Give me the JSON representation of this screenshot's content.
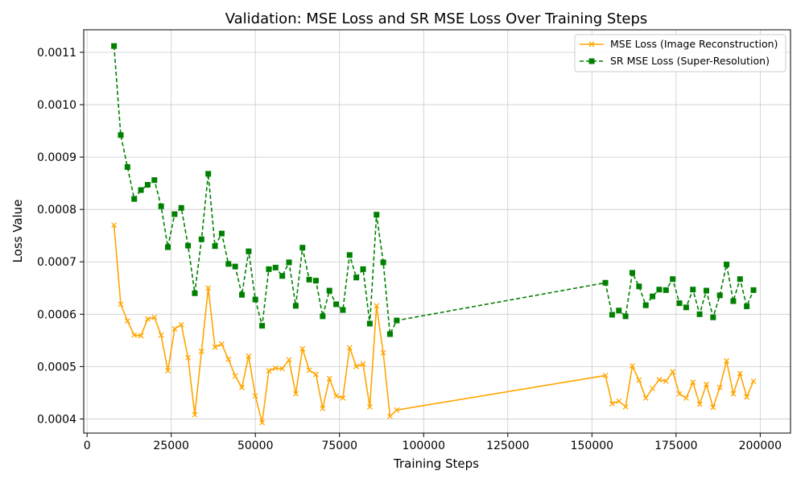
{
  "chart_data": {
    "type": "line",
    "title": "Validation: MSE Loss and SR MSE Loss Over Training Steps",
    "xlabel": "Training Steps",
    "ylabel": "Loss Value",
    "xlim": [
      -1000,
      209000
    ],
    "ylim": [
      0.000373,
      0.001143
    ],
    "xticks": [
      0,
      25000,
      50000,
      75000,
      100000,
      125000,
      150000,
      175000,
      200000
    ],
    "xtick_labels": [
      "0",
      "25000",
      "50000",
      "75000",
      "100000",
      "125000",
      "150000",
      "175000",
      "200000"
    ],
    "yticks": [
      0.0004,
      0.0005,
      0.0006,
      0.0007,
      0.0008,
      0.0009,
      0.001,
      0.0011
    ],
    "ytick_labels": [
      "0.0004",
      "0.0005",
      "0.0006",
      "0.0007",
      "0.0008",
      "0.0009",
      "0.0010",
      "0.0011"
    ],
    "grid": true,
    "legend_position": "top-right",
    "x": [
      8000,
      10000,
      12000,
      14000,
      16000,
      18000,
      20000,
      22000,
      24000,
      26000,
      28000,
      30000,
      32000,
      34000,
      36000,
      38000,
      40000,
      42000,
      44000,
      46000,
      48000,
      50000,
      52000,
      54000,
      56000,
      58000,
      60000,
      62000,
      64000,
      66000,
      68000,
      70000,
      72000,
      74000,
      76000,
      78000,
      80000,
      82000,
      84000,
      86000,
      88000,
      90000,
      92000,
      154000,
      156000,
      158000,
      160000,
      162000,
      164000,
      166000,
      168000,
      170000,
      172000,
      174000,
      176000,
      178000,
      180000,
      182000,
      184000,
      186000,
      188000,
      190000,
      192000,
      194000,
      196000,
      198000
    ],
    "series": [
      {
        "name": "MSE Loss (Image Reconstruction)",
        "color": "#FFA500",
        "linestyle": "solid",
        "marker": "x",
        "values": [
          0.00077,
          0.000619,
          0.000587,
          0.00056,
          0.000559,
          0.000591,
          0.000594,
          0.00056,
          0.000492,
          0.000572,
          0.00058,
          0.000517,
          0.000408,
          0.000529,
          0.00065,
          0.000537,
          0.000543,
          0.000514,
          0.000482,
          0.00046,
          0.00052,
          0.000444,
          0.000393,
          0.000492,
          0.000497,
          0.000496,
          0.000513,
          0.000448,
          0.000534,
          0.000493,
          0.000485,
          0.00042,
          0.000477,
          0.000444,
          0.00044,
          0.000536,
          0.0005,
          0.000505,
          0.000423,
          0.000616,
          0.000526,
          0.000405,
          0.000417,
          0.000483,
          0.000429,
          0.000434,
          0.000423,
          0.000501,
          0.000474,
          0.00044,
          0.000458,
          0.000475,
          0.000472,
          0.00049,
          0.000448,
          0.00044,
          0.00047,
          0.000428,
          0.000466,
          0.000422,
          0.00046,
          0.000511,
          0.000448,
          0.000487,
          0.000442,
          0.000472
        ]
      },
      {
        "name": "SR MSE Loss (Super-Resolution)",
        "color": "#008000",
        "linestyle": "dashed",
        "marker": "square",
        "values": [
          0.001112,
          0.000942,
          0.000881,
          0.00082,
          0.000837,
          0.000847,
          0.000856,
          0.000806,
          0.000728,
          0.000791,
          0.000803,
          0.000731,
          0.00064,
          0.000743,
          0.000868,
          0.00073,
          0.000754,
          0.000696,
          0.000691,
          0.000637,
          0.00072,
          0.000628,
          0.000578,
          0.000686,
          0.000689,
          0.000673,
          0.000699,
          0.000616,
          0.000727,
          0.000666,
          0.000664,
          0.000596,
          0.000645,
          0.000619,
          0.000608,
          0.000713,
          0.00067,
          0.000686,
          0.000582,
          0.00079,
          0.000699,
          0.000562,
          0.000588,
          0.00066,
          0.000599,
          0.000607,
          0.000596,
          0.000679,
          0.000653,
          0.000617,
          0.000634,
          0.000647,
          0.000646,
          0.000667,
          0.000621,
          0.000613,
          0.000647,
          0.0006,
          0.000645,
          0.000594,
          0.000636,
          0.000695,
          0.000625,
          0.000667,
          0.000615,
          0.000646
        ]
      }
    ]
  }
}
